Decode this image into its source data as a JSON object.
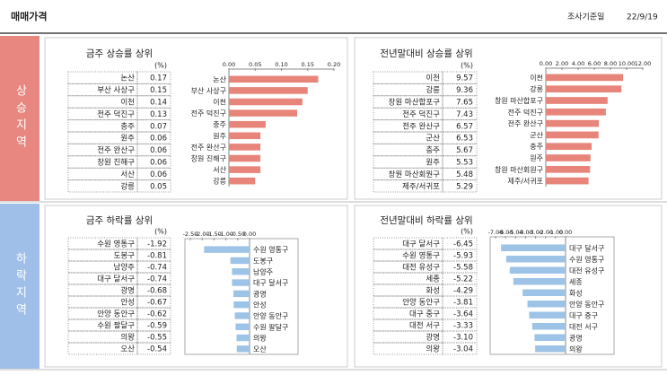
{
  "header": {
    "title": "매매가격",
    "date_label": "조사기준일",
    "date": "22/9/19"
  },
  "sections": [
    {
      "label": "상승지역"
    },
    {
      "label": "하락지역"
    }
  ],
  "chart_data": [
    {
      "type": "bar",
      "orientation": "horizontal",
      "title": "금주 상승률 상위",
      "unit": "(%)",
      "color": "#e8857a",
      "categories": [
        "논산",
        "부산 사상구",
        "이천",
        "전주 덕진구",
        "충주",
        "원주",
        "전주 완산구",
        "창원 진해구",
        "서산",
        "강릉"
      ],
      "values": [
        0.17,
        0.15,
        0.14,
        0.13,
        0.07,
        0.06,
        0.06,
        0.06,
        0.06,
        0.05
      ],
      "xlim": [
        0,
        0.2
      ],
      "xticks": [
        {
          "value": 0,
          "label": "0.00"
        },
        {
          "value": 0.05,
          "label": "0.05"
        },
        {
          "value": 0.1,
          "label": "0.10"
        },
        {
          "value": 0.15,
          "label": "0.15"
        },
        {
          "value": 0.2,
          "label": "0.20"
        }
      ]
    },
    {
      "type": "bar",
      "orientation": "horizontal",
      "title": "전년말대비 상승률 상위",
      "unit": "(%)",
      "color": "#e8857a",
      "categories": [
        "이천",
        "강릉",
        "창원 마산합포구",
        "전주 덕진구",
        "전주 완산구",
        "군산",
        "충주",
        "원주",
        "창원 마산회원구",
        "제주/서귀포"
      ],
      "values": [
        9.57,
        9.36,
        7.65,
        7.43,
        6.57,
        6.53,
        5.67,
        5.53,
        5.48,
        5.29
      ],
      "xlim": [
        0,
        12
      ],
      "xticks": [
        {
          "value": 0,
          "label": "0.00"
        },
        {
          "value": 2,
          "label": "2.00"
        },
        {
          "value": 4,
          "label": "4.00"
        },
        {
          "value": 6,
          "label": "6.00"
        },
        {
          "value": 8,
          "label": "8.00"
        },
        {
          "value": 10,
          "label": "10.00"
        },
        {
          "value": 12,
          "label": "12.00"
        }
      ]
    },
    {
      "type": "bar",
      "orientation": "horizontal",
      "title": "금주 하락률 상위",
      "unit": "(%)",
      "color": "#9dc3e6",
      "categories": [
        "수원 영통구",
        "도봉구",
        "남양주",
        "대구 달서구",
        "광명",
        "안성",
        "안양 동안구",
        "수원 팔달구",
        "의왕",
        "오산"
      ],
      "values": [
        -1.92,
        -0.81,
        -0.74,
        -0.74,
        -0.68,
        -0.67,
        -0.62,
        -0.59,
        -0.55,
        -0.54
      ],
      "xlim": [
        -2.5,
        0
      ],
      "xticks": [
        {
          "value": -2.5,
          "label": "-2.50"
        },
        {
          "value": -2,
          "label": "-2.00"
        },
        {
          "value": -1.5,
          "label": "-1.50"
        },
        {
          "value": -1,
          "label": "-1.00"
        },
        {
          "value": -0.5,
          "label": "-0.50"
        },
        {
          "value": 0,
          "label": "0.00"
        }
      ]
    },
    {
      "type": "bar",
      "orientation": "horizontal",
      "title": "전년말대비 하락률 상위",
      "unit": "(%)",
      "color": "#9dc3e6",
      "categories": [
        "대구 달서구",
        "수원 영통구",
        "대전 유성구",
        "세종",
        "화성",
        "안양 동안구",
        "대구 중구",
        "대전 서구",
        "광명",
        "의왕"
      ],
      "values": [
        -6.45,
        -5.93,
        -5.58,
        -5.22,
        -4.29,
        -3.81,
        -3.64,
        -3.33,
        -3.1,
        -3.04
      ],
      "value_labels": [
        "-6.45",
        "-5.93",
        "-5.58",
        "-5.22",
        "-4.29",
        "-3.81",
        "-3.64",
        "-3.33",
        "-3.10",
        "-3.04"
      ],
      "xlim": [
        -7,
        0
      ],
      "xticks": [
        {
          "value": -7,
          "label": "-7.00"
        },
        {
          "value": -6,
          "label": "-6.00"
        },
        {
          "value": -5,
          "label": "-5.00"
        },
        {
          "value": -4,
          "label": "-4.00"
        },
        {
          "value": -3,
          "label": "-3.00"
        },
        {
          "value": -2,
          "label": "-2.00"
        },
        {
          "value": -1,
          "label": "-1.00"
        },
        {
          "value": 0,
          "label": "0.00"
        }
      ]
    }
  ]
}
